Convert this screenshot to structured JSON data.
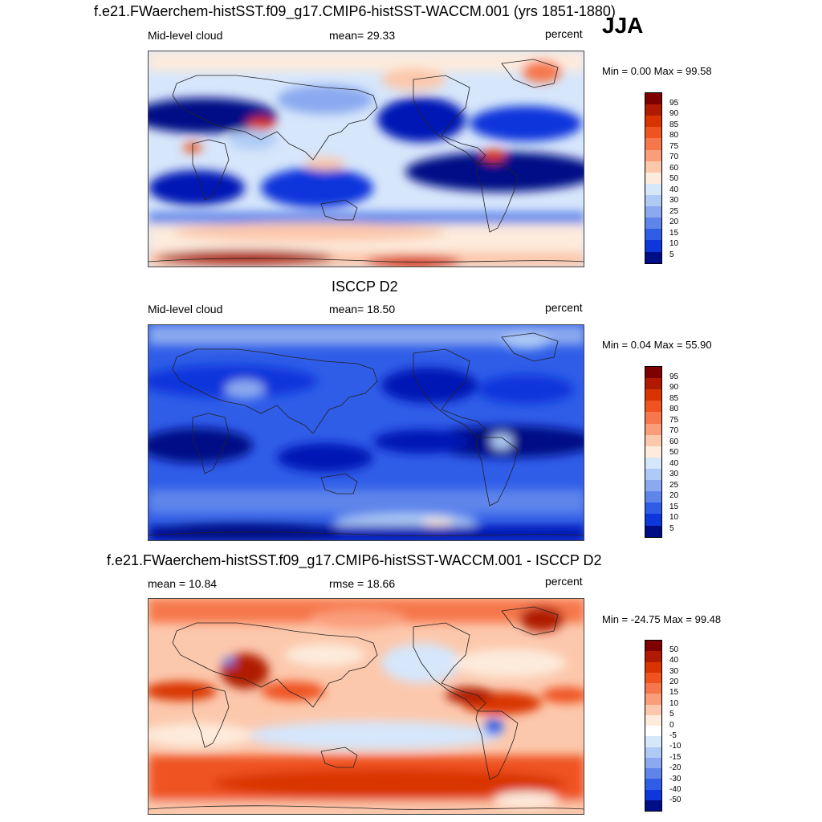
{
  "season": "JJA",
  "panels": [
    {
      "title": "f.e21.FWaerchem-histSST.f09_g17.CMIP6-histSST-WACCM.001 (yrs 1851-1880)",
      "left_label": "Mid-level cloud",
      "center_label": "mean=  29.33",
      "units": "percent",
      "minmax": "Min =   0.00 Max =  99.58",
      "palette": "seq",
      "levels": [
        "95",
        "90",
        "85",
        "80",
        "75",
        "70",
        "60",
        "50",
        "40",
        "30",
        "25",
        "20",
        "15",
        "10",
        "5"
      ]
    },
    {
      "title": "ISCCP D2",
      "left_label": "Mid-level cloud",
      "center_label": "mean=  18.50",
      "units": "percent",
      "minmax": "Min =   0.04 Max =  55.90",
      "palette": "seq",
      "levels": [
        "95",
        "90",
        "85",
        "80",
        "75",
        "70",
        "60",
        "50",
        "40",
        "30",
        "25",
        "20",
        "15",
        "10",
        "5"
      ]
    },
    {
      "title": "f.e21.FWaerchem-histSST.f09_g17.CMIP6-histSST-WACCM.001 - ISCCP D2",
      "left_label": "mean =  10.84",
      "center_label": "rmse =  18.66",
      "units": "percent",
      "minmax": "Min = -24.75 Max =  99.48",
      "palette": "div",
      "levels": [
        "50",
        "40",
        "30",
        "20",
        "15",
        "10",
        "5",
        "0",
        "-5",
        "-10",
        "-15",
        "-20",
        "-30",
        "-40",
        "-50"
      ]
    }
  ],
  "colors": {
    "scale": [
      "#7f0000",
      "#b01a00",
      "#d93400",
      "#ef5320",
      "#f6774b",
      "#fa9d7a",
      "#fcc8ac",
      "#fdebdc",
      "#ffffff",
      "#d6e6fb",
      "#aecbf5",
      "#8aa9ef",
      "#5f85eb",
      "#2f5de8",
      "#0d36db",
      "#0018b5",
      "#000e86"
    ]
  }
}
